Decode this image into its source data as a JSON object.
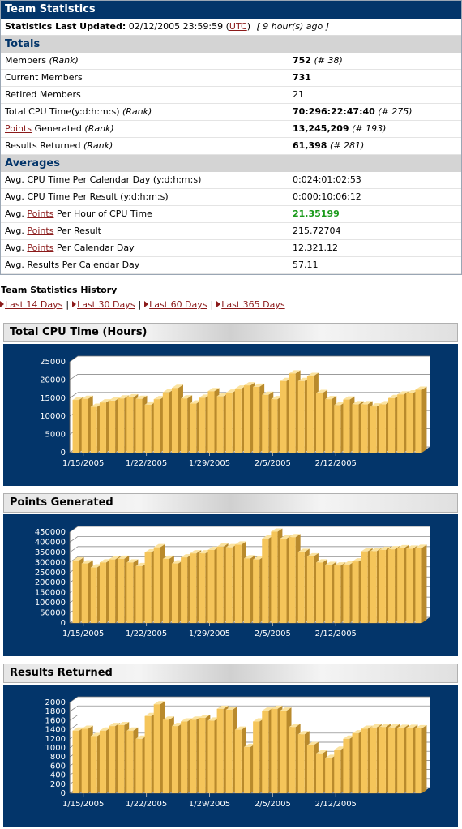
{
  "title": "Team Statistics",
  "last_updated": {
    "label": "Statistics Last Updated:",
    "datetime": "02/12/2005 23:59:59",
    "tz_open": "(",
    "tz": "UTC",
    "tz_close": ")",
    "ago": "[ 9 hour(s) ago ]"
  },
  "totals": {
    "heading": "Totals",
    "rows": [
      {
        "label": "Members",
        "rank_label": "(Rank)",
        "value": "752",
        "rank": "(# 38)"
      },
      {
        "label": "Current Members",
        "value": "731"
      },
      {
        "label": "Retired Members",
        "value": "21"
      },
      {
        "label": "Total CPU Time(y:d:h:m:s)",
        "rank_label": "(Rank)",
        "value": "70:296:22:47:40",
        "rank": "(# 275)"
      },
      {
        "label_link": "Points",
        "label": " Generated",
        "rank_label": "(Rank)",
        "value": "13,245,209",
        "rank": "(# 193)"
      },
      {
        "label": "Results Returned",
        "rank_label": "(Rank)",
        "value": "61,398",
        "rank": "(# 281)"
      }
    ]
  },
  "averages": {
    "heading": "Averages",
    "rows": [
      {
        "label": "Avg. CPU Time Per Calendar Day (y:d:h:m:s)",
        "value": "0:024:01:02:53"
      },
      {
        "label": "Avg. CPU Time Per Result (y:d:h:m:s)",
        "value": "0:000:10:06:12"
      },
      {
        "label_pre": "Avg. ",
        "label_link": "Points",
        "label": " Per Hour of CPU Time",
        "value": "21.35199"
      },
      {
        "label_pre": "Avg. ",
        "label_link": "Points",
        "label": " Per Result",
        "value": "215.72704"
      },
      {
        "label_pre": "Avg. ",
        "label_link": "Points",
        "label": " Per Calendar Day",
        "value": "12,321.12"
      },
      {
        "label": "Avg. Results Per Calendar Day",
        "value": "57.11"
      }
    ]
  },
  "history": {
    "title": "Team Statistics History",
    "links": [
      "Last 14 Days",
      "Last 30 Days",
      "Last 60 Days",
      "Last 365 Days"
    ],
    "separator": "|"
  },
  "colors": {
    "header_bg": "#03356a",
    "section_bg": "#d4d4d4",
    "link": "#8b1a1a",
    "bar": "#f5c55a",
    "green": "#1a9a1a"
  },
  "chart_data": [
    {
      "type": "bar",
      "title": "Total CPU Time (Hours)",
      "ylim": [
        0,
        25000
      ],
      "yticks": [
        0,
        5000,
        10000,
        15000,
        20000,
        25000
      ],
      "xticks": [
        "1/15/2005",
        "1/22/2005",
        "1/29/2005",
        "2/5/2005",
        "2/12/2005"
      ],
      "values": [
        14500,
        14800,
        12600,
        13800,
        14300,
        14900,
        15200,
        14800,
        13200,
        14700,
        16600,
        17800,
        14900,
        13500,
        15100,
        16900,
        15500,
        16500,
        17600,
        18500,
        18100,
        15900,
        14700,
        19700,
        21800,
        19700,
        21100,
        16400,
        14700,
        13100,
        14600,
        13300,
        13300,
        12700,
        13300,
        15000,
        16000,
        16300,
        17300
      ],
      "xtick_index": [
        1,
        8,
        15,
        22,
        29
      ]
    },
    {
      "type": "bar",
      "title": "Points Generated",
      "ylim": [
        0,
        450000
      ],
      "yticks": [
        0,
        50000,
        100000,
        150000,
        200000,
        250000,
        300000,
        350000,
        400000,
        450000
      ],
      "xticks": [
        "1/15/2005",
        "1/22/2005",
        "1/29/2005",
        "2/5/2005",
        "2/12/2005"
      ],
      "values": [
        310000,
        295000,
        275000,
        300000,
        315000,
        318000,
        300000,
        282000,
        350000,
        375000,
        318000,
        295000,
        325000,
        345000,
        345000,
        362000,
        378000,
        375000,
        388000,
        320000,
        315000,
        418000,
        452000,
        418000,
        425000,
        352000,
        330000,
        300000,
        288000,
        285000,
        290000,
        305000,
        355000,
        356000,
        362000,
        365000,
        370000,
        368000,
        372000
      ],
      "xtick_index": [
        1,
        8,
        15,
        22,
        29
      ]
    },
    {
      "type": "bar",
      "title": "Results Returned",
      "ylim": [
        0,
        2000
      ],
      "yticks": [
        0,
        200,
        400,
        600,
        800,
        1000,
        1200,
        1400,
        1600,
        1800,
        2000
      ],
      "xticks": [
        "1/15/2005",
        "1/22/2005",
        "1/29/2005",
        "2/5/2005",
        "2/12/2005"
      ],
      "values": [
        1380,
        1420,
        1260,
        1380,
        1480,
        1500,
        1380,
        1200,
        1700,
        1960,
        1620,
        1480,
        1580,
        1620,
        1660,
        1600,
        1860,
        1840,
        1400,
        1020,
        1580,
        1820,
        1860,
        1820,
        1460,
        1300,
        1060,
        880,
        780,
        960,
        1200,
        1320,
        1420,
        1450,
        1460,
        1450,
        1440,
        1440,
        1430
      ],
      "xtick_index": [
        1,
        8,
        15,
        22,
        29
      ]
    }
  ]
}
